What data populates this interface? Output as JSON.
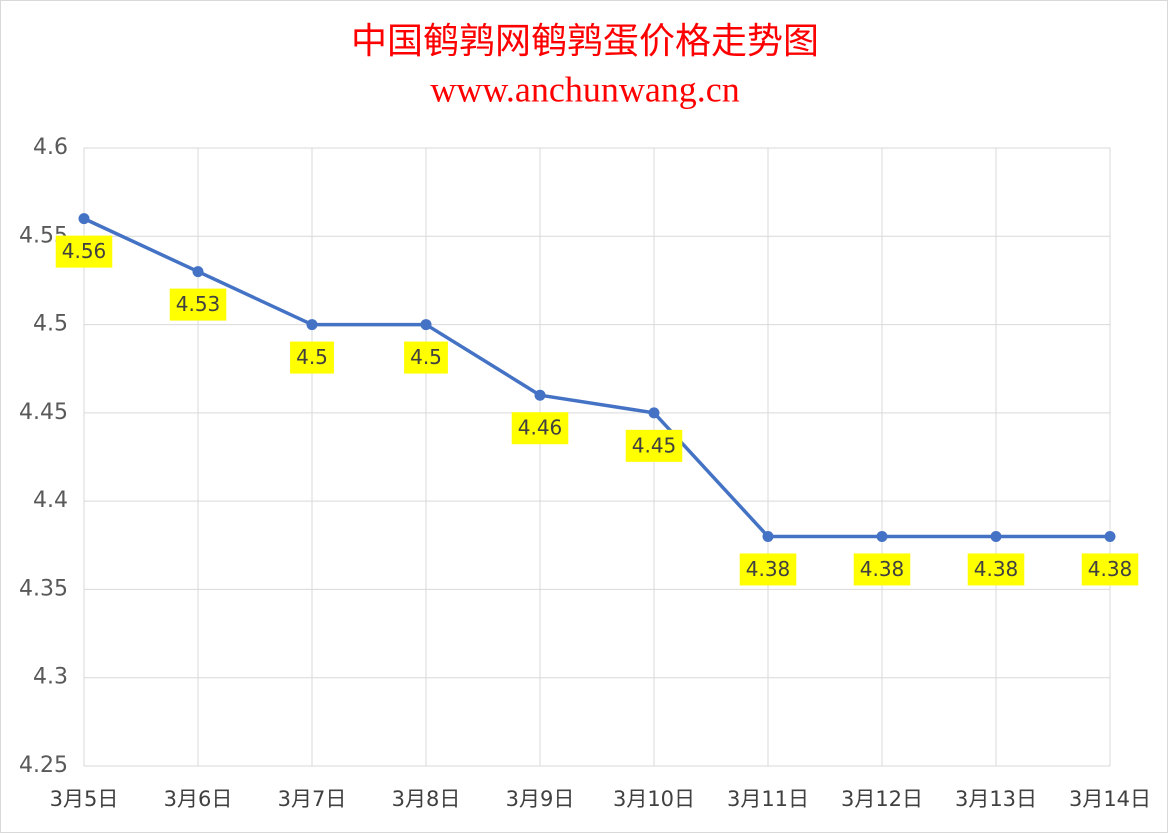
{
  "chart_data": {
    "type": "line",
    "title": "中国鹌鹑网鹌鹑蛋价格走势图",
    "subtitle": "www.anchunwang.cn",
    "categories": [
      "3月5日",
      "3月6日",
      "3月7日",
      "3月8日",
      "3月9日",
      "3月10日",
      "3月11日",
      "3月12日",
      "3月13日",
      "3月14日"
    ],
    "series": [
      {
        "name": "鹌鹑蛋价格",
        "color": "#4472c4",
        "values": [
          4.56,
          4.53,
          4.5,
          4.5,
          4.46,
          4.45,
          4.38,
          4.38,
          4.38,
          4.38
        ]
      }
    ],
    "ylim": [
      4.25,
      4.6
    ],
    "yticks": [
      4.25,
      4.3,
      4.35,
      4.4,
      4.45,
      4.5,
      4.55,
      4.6
    ],
    "grid": true,
    "data_labels": true,
    "data_label_background": "#ffff00",
    "title_color": "#ff0000"
  }
}
